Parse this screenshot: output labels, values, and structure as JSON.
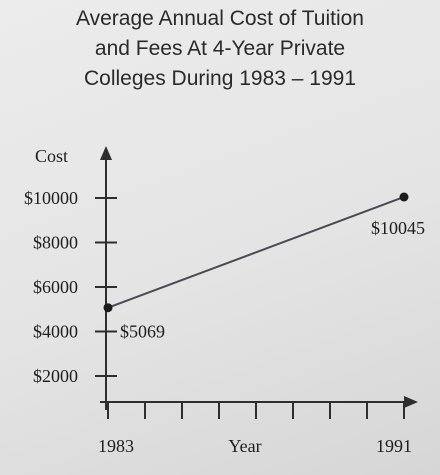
{
  "chart_data": {
    "type": "line",
    "title_lines": [
      "Average Annual Cost of Tuition",
      "and Fees At 4-Year Private",
      "Colleges During 1983 – 1991"
    ],
    "xlabel": "Year",
    "ylabel": "Cost",
    "x_tick_labels": [
      "1983",
      "1991"
    ],
    "x_range": [
      1983,
      1991
    ],
    "y_ticks": [
      {
        "value": 2000,
        "label": "$2000"
      },
      {
        "value": 4000,
        "label": "$4000"
      },
      {
        "value": 6000,
        "label": "$6000"
      },
      {
        "value": 8000,
        "label": "$8000"
      },
      {
        "value": 10000,
        "label": "$10000"
      }
    ],
    "ylim": [
      0,
      11000
    ],
    "grid": false,
    "series": [
      {
        "points": [
          {
            "x": 1983,
            "y": 5069,
            "label": "$5069"
          },
          {
            "x": 1991,
            "y": 10045,
            "label": "$10045"
          }
        ]
      }
    ]
  }
}
